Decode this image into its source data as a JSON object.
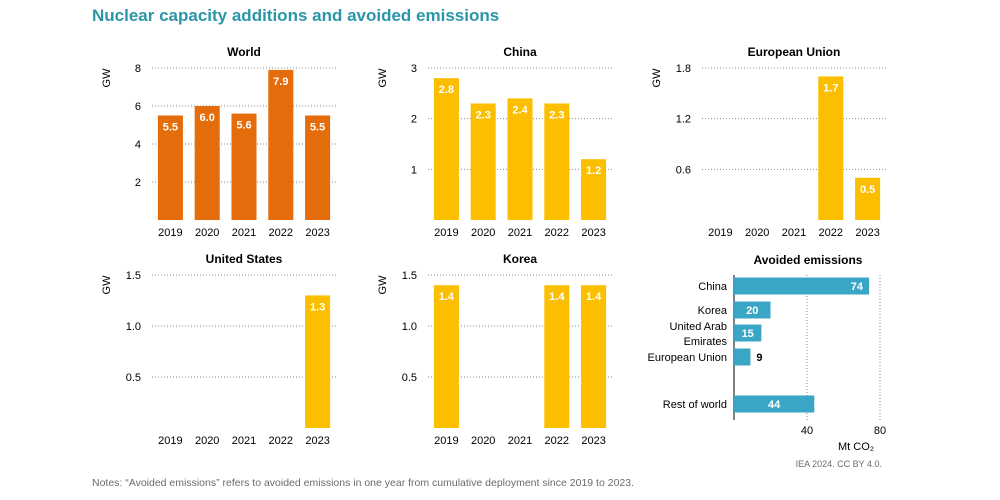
{
  "title": "Nuclear capacity additions and avoided emissions",
  "notes": "Notes: “Avoided emissions” refers to avoided emissions in one year from cumulative deployment since 2019 to 2023.",
  "credit": "IEA 2024. CC BY 4.0.",
  "colors": {
    "world": "#e46c0a",
    "region": "#fbbf00",
    "emissions": "#3aa6c5"
  },
  "chart_data": [
    {
      "type": "bar",
      "title": "World",
      "ylabel": "GW",
      "categories": [
        "2019",
        "2020",
        "2021",
        "2022",
        "2023"
      ],
      "values": [
        5.5,
        6.0,
        5.6,
        7.9,
        5.5
      ],
      "labels": [
        "5.5",
        "6.0",
        "5.6",
        "7.9",
        "5.5"
      ],
      "ylim": [
        0,
        8
      ],
      "yticks": [
        2,
        4,
        6,
        8
      ],
      "ytick_labels": [
        "2",
        "4",
        "6",
        "8"
      ],
      "color_key": "world"
    },
    {
      "type": "bar",
      "title": "China",
      "ylabel": "GW",
      "categories": [
        "2019",
        "2020",
        "2021",
        "2022",
        "2023"
      ],
      "values": [
        2.8,
        2.3,
        2.4,
        2.3,
        1.2
      ],
      "labels": [
        "2.8",
        "2.3",
        "2.4",
        "2.3",
        "1.2"
      ],
      "ylim": [
        0,
        3
      ],
      "yticks": [
        1,
        2,
        3
      ],
      "ytick_labels": [
        "1",
        "2",
        "3"
      ],
      "color_key": "region"
    },
    {
      "type": "bar",
      "title": "European Union",
      "ylabel": "GW",
      "categories": [
        "2019",
        "2020",
        "2021",
        "2022",
        "2023"
      ],
      "values": [
        0,
        0,
        0,
        1.7,
        0.5
      ],
      "labels": [
        "",
        "",
        "",
        "1.7",
        "0.5"
      ],
      "ylim": [
        0,
        1.8
      ],
      "yticks": [
        0.6,
        1.2,
        1.8
      ],
      "ytick_labels": [
        "0.6",
        "1.2",
        "1.8"
      ],
      "color_key": "region"
    },
    {
      "type": "bar",
      "title": "United States",
      "ylabel": "GW",
      "categories": [
        "2019",
        "2020",
        "2021",
        "2022",
        "2023"
      ],
      "values": [
        0,
        0,
        0,
        0,
        1.3
      ],
      "labels": [
        "",
        "",
        "",
        "",
        "1.3"
      ],
      "ylim": [
        0,
        1.5
      ],
      "yticks": [
        0.5,
        1.0,
        1.5
      ],
      "ytick_labels": [
        "0.5",
        "1.0",
        "1.5"
      ],
      "color_key": "region"
    },
    {
      "type": "bar",
      "title": "Korea",
      "ylabel": "GW",
      "categories": [
        "2019",
        "2020",
        "2021",
        "2022",
        "2023"
      ],
      "values": [
        1.4,
        0,
        0,
        1.4,
        1.4
      ],
      "labels": [
        "1.4",
        "",
        "",
        "1.4",
        "1.4"
      ],
      "ylim": [
        0,
        1.5
      ],
      "yticks": [
        0.5,
        1.0,
        1.5
      ],
      "ytick_labels": [
        "0.5",
        "1.0",
        "1.5"
      ],
      "color_key": "region"
    },
    {
      "type": "hbar",
      "title": "Avoided emissions",
      "xlabel": "Mt CO₂",
      "categories": [
        "China",
        "Korea",
        "United Arab Emirates",
        "European Union",
        "Rest of world"
      ],
      "values": [
        74,
        20,
        15,
        9,
        44
      ],
      "labels": [
        "74",
        "20",
        "15",
        "9",
        "44"
      ],
      "xlim": [
        0,
        80
      ],
      "xticks": [
        40,
        80
      ],
      "xtick_labels": [
        "40",
        "80"
      ],
      "color_key": "emissions"
    }
  ]
}
